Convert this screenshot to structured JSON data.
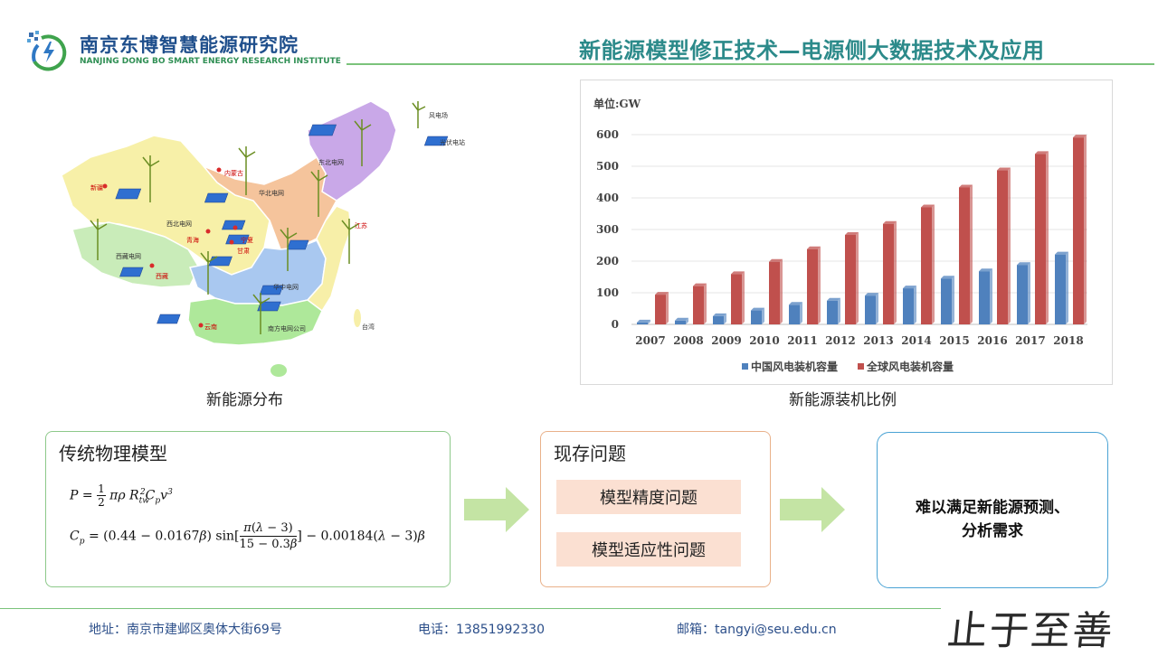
{
  "header": {
    "org_cn": "南京东博智慧能源研究院",
    "org_en": "NANJING DONG BO SMART ENERGY RESEARCH INSTITUTE",
    "title": "新能源模型修正技术—电源侧大数据技术及应用",
    "logo_icon": "lightning-bolt-logo-icon",
    "accent": "#2c8a8a"
  },
  "map": {
    "caption": "新能源分布",
    "legend": {
      "wind": "风电场",
      "solar": "光伏电站"
    },
    "labels": {
      "dongbei": "东北电网",
      "neimenggu": "内蒙古",
      "xinjiang": "新疆",
      "huabei": "华北电网",
      "xibei": "西北电网",
      "qinghai": "青海",
      "ningxia": "宁夏",
      "gansu": "甘肃",
      "jiangsu": "江苏",
      "xizang_grid": "西藏电网",
      "xizang": "西藏",
      "huazhong": "华中电网",
      "yunnan": "云南",
      "nanfang": "南方电网公司",
      "taiwan": "台湾"
    },
    "region_colors": {
      "dongbei": "#c9a8e8",
      "xibei": "#f7f0a8",
      "huabei": "#f5c49c",
      "xizang": "#c9ecb9",
      "huazhong": "#a9c8f0",
      "nanfang": "#aee89a",
      "east": "#f7efa8"
    }
  },
  "chart_data": {
    "type": "bar",
    "unit_label": "单位:GW",
    "categories": [
      "2007",
      "2008",
      "2009",
      "2010",
      "2011",
      "2012",
      "2013",
      "2014",
      "2015",
      "2016",
      "2017",
      "2018"
    ],
    "series": [
      {
        "name": "中国风电装机容量",
        "color": "#4f81bd",
        "values": [
          6,
          12,
          26,
          44,
          62,
          75,
          91,
          114,
          145,
          168,
          188,
          221
        ]
      },
      {
        "name": "全球风电装机容量",
        "color": "#c0504d",
        "values": [
          94,
          121,
          159,
          198,
          238,
          283,
          318,
          370,
          433,
          487,
          539,
          591
        ]
      }
    ],
    "ylim": [
      0,
      600
    ],
    "yticks": [
      0,
      100,
      200,
      300,
      400,
      500,
      600
    ],
    "grid": true,
    "legend_position": "bottom",
    "caption": "新能源装机比例"
  },
  "model": {
    "title": "传统物理模型"
  },
  "issues": {
    "title": "现存问题",
    "items": [
      "模型精度问题",
      "模型适应性问题"
    ]
  },
  "result": {
    "line1": "难以满足新能源预测、",
    "line2": "分析需求"
  },
  "footer": {
    "address": "地址：南京市建邺区奥体大街69号",
    "phone": "电话：13851992330",
    "email": "邮箱：tangyi@seu.edu.cn",
    "motto": "止于至善"
  }
}
